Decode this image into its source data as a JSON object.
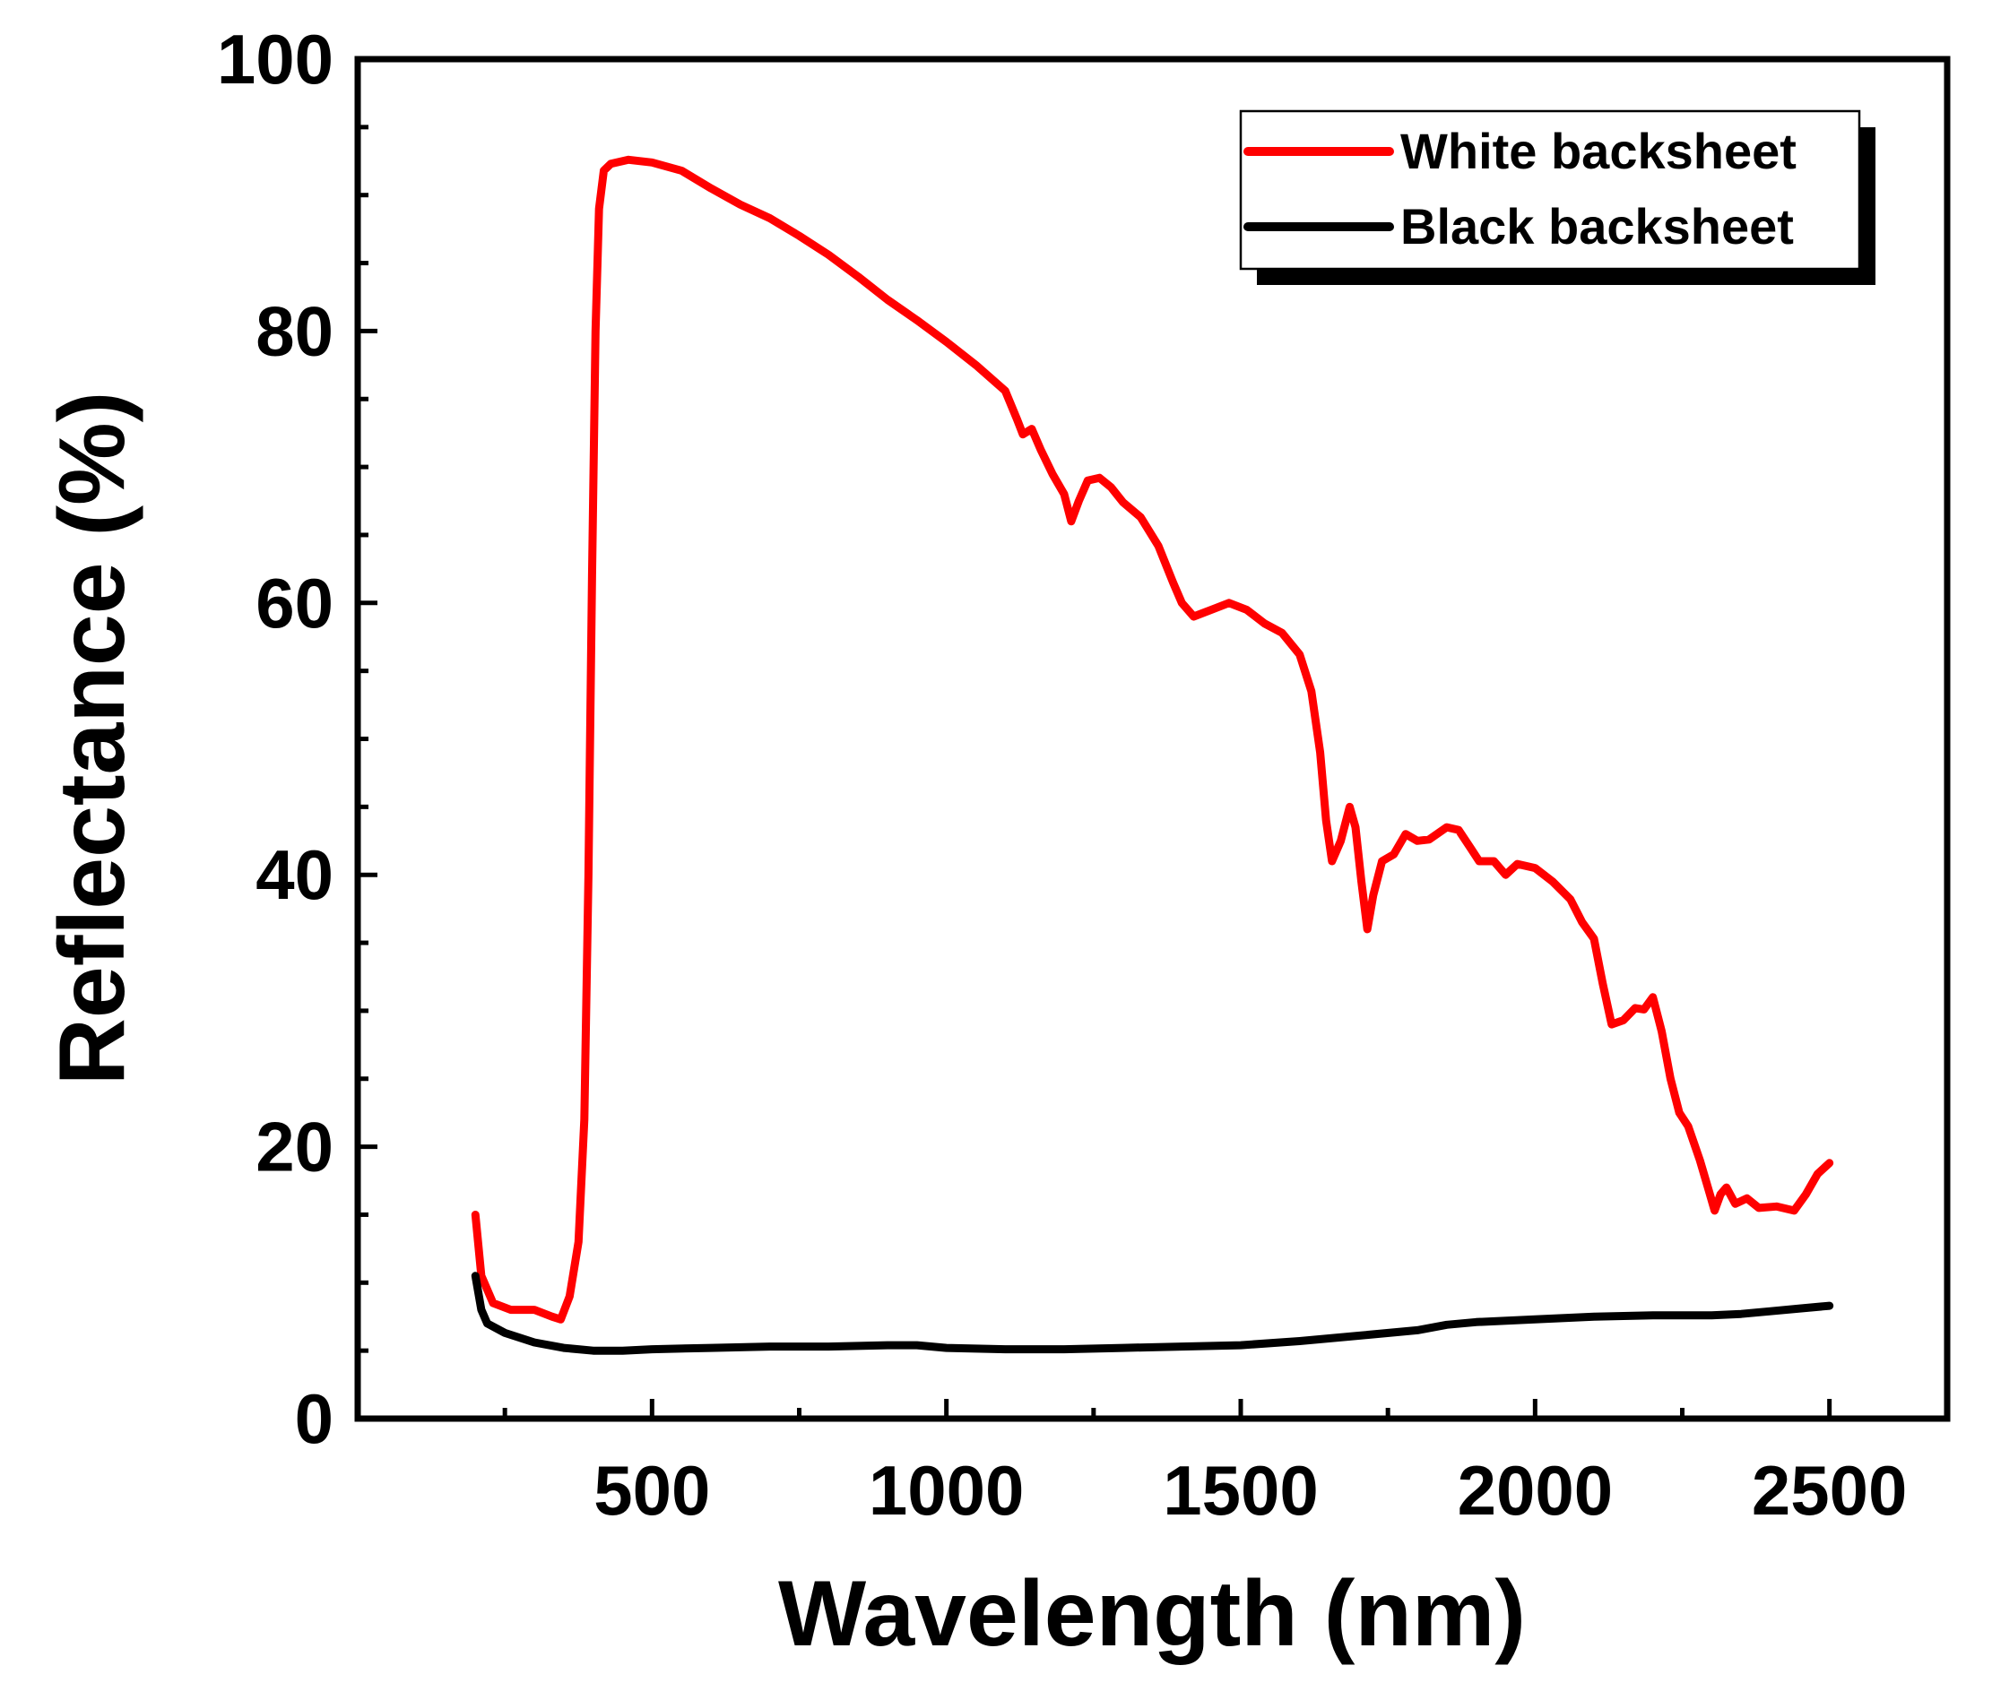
{
  "chart_data": {
    "type": "line",
    "title": "",
    "xlabel": "Wavelength  (nm)",
    "ylabel": "Reflectance  (%)",
    "xlim": [
      0,
      2700
    ],
    "ylim": [
      0,
      100
    ],
    "x_ticks": [
      500,
      1000,
      1500,
      2000,
      2500
    ],
    "x_tick_labels": [
      "500",
      "1000",
      "1500",
      "2000",
      "2500"
    ],
    "y_ticks": [
      0,
      20,
      40,
      60,
      80,
      100
    ],
    "y_tick_labels": [
      "0",
      "20",
      "40",
      "60",
      "80",
      "100"
    ],
    "legend_position": "top-right",
    "grid": false,
    "series": [
      {
        "name": "White backsheet",
        "color": "#ff0000",
        "points": [
          [
            200,
            15
          ],
          [
            210,
            10.5
          ],
          [
            230,
            8.5
          ],
          [
            260,
            8
          ],
          [
            300,
            8
          ],
          [
            330,
            7.5
          ],
          [
            345,
            7.3
          ],
          [
            360,
            9
          ],
          [
            375,
            13
          ],
          [
            385,
            22
          ],
          [
            392,
            40
          ],
          [
            398,
            62
          ],
          [
            404,
            80
          ],
          [
            410,
            89
          ],
          [
            418,
            91.8
          ],
          [
            430,
            92.3
          ],
          [
            460,
            92.6
          ],
          [
            500,
            92.4
          ],
          [
            550,
            91.8
          ],
          [
            600,
            90.5
          ],
          [
            650,
            89.3
          ],
          [
            700,
            88.3
          ],
          [
            750,
            87
          ],
          [
            800,
            85.6
          ],
          [
            850,
            84
          ],
          [
            900,
            82.3
          ],
          [
            950,
            80.8
          ],
          [
            1000,
            79.2
          ],
          [
            1050,
            77.5
          ],
          [
            1100,
            75.6
          ],
          [
            1120,
            73.5
          ],
          [
            1130,
            72.4
          ],
          [
            1145,
            72.8
          ],
          [
            1160,
            71.3
          ],
          [
            1180,
            69.5
          ],
          [
            1200,
            68
          ],
          [
            1212,
            66
          ],
          [
            1225,
            67.5
          ],
          [
            1240,
            69
          ],
          [
            1260,
            69.2
          ],
          [
            1280,
            68.5
          ],
          [
            1300,
            67.4
          ],
          [
            1330,
            66.3
          ],
          [
            1360,
            64.2
          ],
          [
            1385,
            61.5
          ],
          [
            1400,
            60
          ],
          [
            1420,
            59
          ],
          [
            1450,
            59.5
          ],
          [
            1480,
            60
          ],
          [
            1510,
            59.5
          ],
          [
            1540,
            58.5
          ],
          [
            1570,
            57.8
          ],
          [
            1600,
            56.2
          ],
          [
            1620,
            53.5
          ],
          [
            1635,
            49
          ],
          [
            1645,
            44
          ],
          [
            1655,
            41
          ],
          [
            1670,
            42.5
          ],
          [
            1685,
            45
          ],
          [
            1695,
            43.5
          ],
          [
            1705,
            39.5
          ],
          [
            1715,
            36
          ],
          [
            1725,
            38.5
          ],
          [
            1740,
            41
          ],
          [
            1760,
            41.5
          ],
          [
            1780,
            43
          ],
          [
            1800,
            42.5
          ],
          [
            1820,
            42.6
          ],
          [
            1850,
            43.5
          ],
          [
            1870,
            43.3
          ],
          [
            1890,
            42
          ],
          [
            1905,
            41
          ],
          [
            1930,
            41
          ],
          [
            1950,
            40
          ],
          [
            1970,
            40.8
          ],
          [
            2000,
            40.5
          ],
          [
            2030,
            39.5
          ],
          [
            2060,
            38.2
          ],
          [
            2080,
            36.5
          ],
          [
            2100,
            35.3
          ],
          [
            2115,
            32
          ],
          [
            2130,
            29
          ],
          [
            2150,
            29.3
          ],
          [
            2170,
            30.2
          ],
          [
            2185,
            30.1
          ],
          [
            2200,
            31
          ],
          [
            2215,
            28.5
          ],
          [
            2230,
            25
          ],
          [
            2245,
            22.5
          ],
          [
            2260,
            21.5
          ],
          [
            2280,
            19
          ],
          [
            2295,
            16.8
          ],
          [
            2305,
            15.3
          ],
          [
            2315,
            16.5
          ],
          [
            2325,
            17
          ],
          [
            2340,
            15.8
          ],
          [
            2360,
            16.2
          ],
          [
            2380,
            15.5
          ],
          [
            2410,
            15.6
          ],
          [
            2440,
            15.3
          ],
          [
            2460,
            16.5
          ],
          [
            2480,
            18
          ],
          [
            2500,
            18.8
          ]
        ]
      },
      {
        "name": "Black backsheet",
        "color": "#000000",
        "points": [
          [
            200,
            10.5
          ],
          [
            210,
            8
          ],
          [
            220,
            7
          ],
          [
            250,
            6.3
          ],
          [
            300,
            5.6
          ],
          [
            350,
            5.2
          ],
          [
            400,
            5
          ],
          [
            450,
            5
          ],
          [
            500,
            5.1
          ],
          [
            600,
            5.2
          ],
          [
            700,
            5.3
          ],
          [
            800,
            5.3
          ],
          [
            900,
            5.4
          ],
          [
            950,
            5.4
          ],
          [
            1000,
            5.2
          ],
          [
            1100,
            5.1
          ],
          [
            1200,
            5.1
          ],
          [
            1300,
            5.2
          ],
          [
            1400,
            5.3
          ],
          [
            1500,
            5.4
          ],
          [
            1600,
            5.7
          ],
          [
            1700,
            6.1
          ],
          [
            1800,
            6.5
          ],
          [
            1850,
            6.9
          ],
          [
            1900,
            7.1
          ],
          [
            2000,
            7.3
          ],
          [
            2100,
            7.5
          ],
          [
            2200,
            7.6
          ],
          [
            2250,
            7.6
          ],
          [
            2300,
            7.6
          ],
          [
            2350,
            7.7
          ],
          [
            2400,
            7.9
          ],
          [
            2450,
            8.1
          ],
          [
            2500,
            8.3
          ]
        ]
      }
    ]
  }
}
